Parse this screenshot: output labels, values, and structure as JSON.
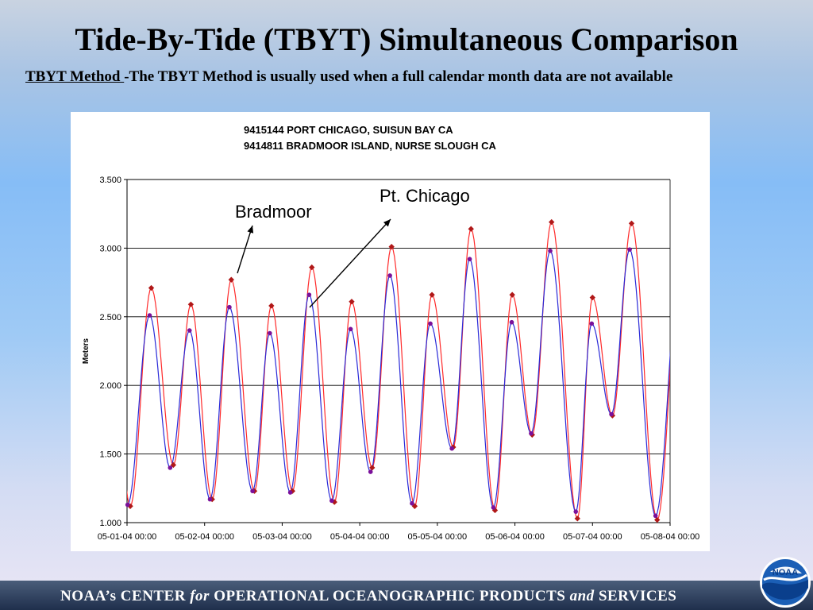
{
  "slide": {
    "title": "Tide-By-Tide (TBYT) Simultaneous Comparison",
    "subtitle_prefix": "TBYT Method ",
    "subtitle_rest": "-The TBYT Method is usually used when a full calendar month data are not available"
  },
  "footer": {
    "part1": "NOAA’s  CENTER  ",
    "part2": "for",
    "part3": "  OPERATIONAL  OCEANOGRAPHIC  PRODUCTS  ",
    "part4": "and",
    "part5": "  SERVICES",
    "logo_text": "NOAA"
  },
  "chart_data": {
    "type": "line",
    "title_lines": [
      "9415144  PORT CHICAGO, SUISUN BAY CA",
      "9414811  BRADMOOR ISLAND, NURSE SLOUGH CA"
    ],
    "ylabel": "Meters",
    "xlabel": "",
    "ylim": [
      1.0,
      3.5
    ],
    "yticks": [
      "1.000",
      "1.500",
      "2.000",
      "2.500",
      "3.000",
      "3.500"
    ],
    "xlim_days": [
      "05-01-04 00:00",
      "05-08-04 00:00"
    ],
    "xticks": [
      "05-01-04 00:00",
      "05-02-04 00:00",
      "05-03-04 00:00",
      "05-04-04 00:00",
      "05-05-04 00:00",
      "05-06-04 00:00",
      "05-07-04 00:00",
      "05-08-04 00:00"
    ],
    "grid": "horizontal",
    "series": [
      {
        "name": "Pt. Chicago",
        "color": "#ff2a2a",
        "marker_color": "#b01818",
        "extrema": [
          [
            "05-01-04 01:00",
            1.12
          ],
          [
            "05-01-04 07:30",
            2.71
          ],
          [
            "05-01-04 14:20",
            1.42
          ],
          [
            "05-01-04 19:45",
            2.59
          ],
          [
            "05-02-04 02:20",
            1.17
          ],
          [
            "05-02-04 08:15",
            2.77
          ],
          [
            "05-02-04 15:25",
            1.23
          ],
          [
            "05-02-04 20:40",
            2.58
          ],
          [
            "05-03-04 03:10",
            1.23
          ],
          [
            "05-03-04 09:10",
            2.86
          ],
          [
            "05-03-04 16:10",
            1.15
          ],
          [
            "05-03-04 21:30",
            2.61
          ],
          [
            "05-04-04 03:50",
            1.4
          ],
          [
            "05-04-04 09:50",
            3.01
          ],
          [
            "05-04-04 17:00",
            1.12
          ],
          [
            "05-04-04 22:20",
            2.66
          ],
          [
            "05-05-04 04:55",
            1.55
          ],
          [
            "05-05-04 10:25",
            3.14
          ],
          [
            "05-05-04 17:50",
            1.09
          ],
          [
            "05-05-04 23:10",
            2.66
          ],
          [
            "05-06-04 05:20",
            1.64
          ],
          [
            "05-06-04 11:20",
            3.19
          ],
          [
            "05-06-04 19:20",
            1.03
          ],
          [
            "05-06-04 24:00",
            2.64
          ],
          [
            "05-07-04 06:10",
            1.78
          ],
          [
            "05-07-04 12:05",
            3.18
          ],
          [
            "05-07-04 20:00",
            1.02
          ]
        ]
      },
      {
        "name": "Bradmoor",
        "color": "#2a2ad8",
        "marker_color": "#7a109a",
        "extrema": [
          [
            "05-01-04 00:10",
            1.13
          ],
          [
            "05-01-04 07:00",
            2.51
          ],
          [
            "05-01-04 13:20",
            1.4
          ],
          [
            "05-01-04 19:20",
            2.4
          ],
          [
            "05-02-04 01:40",
            1.17
          ],
          [
            "05-02-04 07:40",
            2.57
          ],
          [
            "05-02-04 14:50",
            1.23
          ],
          [
            "05-02-04 20:10",
            2.38
          ],
          [
            "05-03-04 02:30",
            1.22
          ],
          [
            "05-03-04 08:20",
            2.66
          ],
          [
            "05-03-04 15:20",
            1.16
          ],
          [
            "05-03-04 21:10",
            2.41
          ],
          [
            "05-04-04 03:20",
            1.37
          ],
          [
            "05-04-04 09:20",
            2.8
          ],
          [
            "05-04-04 16:10",
            1.14
          ],
          [
            "05-04-04 21:50",
            2.45
          ],
          [
            "05-05-04 04:30",
            1.54
          ],
          [
            "05-05-04 10:00",
            2.92
          ],
          [
            "05-05-04 17:20",
            1.11
          ],
          [
            "05-05-04 23:00",
            2.46
          ],
          [
            "05-06-04 05:00",
            1.65
          ],
          [
            "05-06-04 10:55",
            2.98
          ],
          [
            "05-06-04 18:50",
            1.08
          ],
          [
            "05-06-04 23:45",
            2.45
          ],
          [
            "05-07-04 05:50",
            1.79
          ],
          [
            "05-07-04 11:30",
            2.99
          ],
          [
            "05-07-04 19:30",
            1.05
          ]
        ]
      }
    ],
    "annotations": [
      {
        "text": "Bradmoor"
      },
      {
        "text": "Pt. Chicago"
      }
    ]
  }
}
